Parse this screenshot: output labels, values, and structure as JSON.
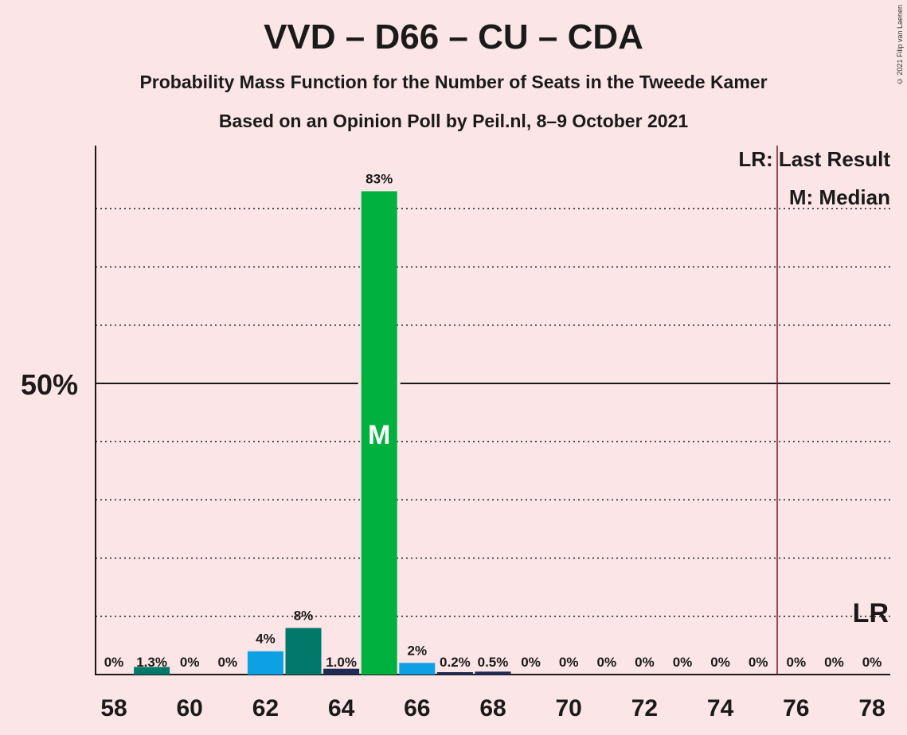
{
  "title": "VVD – D66 – CU – CDA",
  "subtitle": "Probability Mass Function for the Number of Seats in the Tweede Kamer",
  "subtitle2": "Based on an Opinion Poll by Peil.nl, 8–9 October 2021",
  "copyright": "© 2021 Filip van Laenen",
  "legend": {
    "last_result": "LR: Last Result",
    "median": "M: Median"
  },
  "y_tick_label": "50%",
  "median_marker": "M",
  "lr_marker": "LR",
  "colors": {
    "background": "#FCE5E6",
    "vvd": "#00B140",
    "d66": "#0DA1E4",
    "cu": "#00796B",
    "cda_dark": "#1F2A55",
    "last_result_line": "#7B1A1F",
    "text": "#1a1a1a"
  },
  "chart_data": {
    "type": "bar",
    "x": [
      58,
      59,
      60,
      61,
      62,
      63,
      64,
      65,
      66,
      67,
      68,
      69,
      70,
      71,
      72,
      73,
      74,
      75,
      76,
      77,
      78
    ],
    "values": [
      0,
      1.3,
      0,
      0,
      4,
      8,
      1.0,
      83,
      2,
      0.2,
      0.5,
      0,
      0,
      0,
      0,
      0,
      0,
      0,
      0,
      0,
      0
    ],
    "labels": [
      "0%",
      "1.3%",
      "0%",
      "0%",
      "4%",
      "8%",
      "1.0%",
      "83%",
      "2%",
      "0.2%",
      "0.5%",
      "0%",
      "0%",
      "0%",
      "0%",
      "0%",
      "0%",
      "0%",
      "0%",
      "0%",
      "0%"
    ],
    "bar_colors": [
      "",
      "#00796B",
      "",
      "",
      "#0DA1E4",
      "#00796B",
      "#1F2A55",
      "#00B140",
      "#0DA1E4",
      "#1F2A55",
      "#1F2A55",
      "",
      "",
      "",
      "",
      "",
      "",
      "",
      "",
      "",
      ""
    ],
    "x_tick_labels": [
      "58",
      "60",
      "62",
      "64",
      "66",
      "68",
      "70",
      "72",
      "74",
      "76",
      "78"
    ],
    "ylim": [
      0,
      90
    ],
    "major_gridline": 50,
    "minor_gridlines": [
      10,
      20,
      30,
      40,
      60,
      70,
      80
    ],
    "median": 65,
    "last_result": 75.5,
    "last_result_seats": 78,
    "legend_position": "top-right"
  }
}
